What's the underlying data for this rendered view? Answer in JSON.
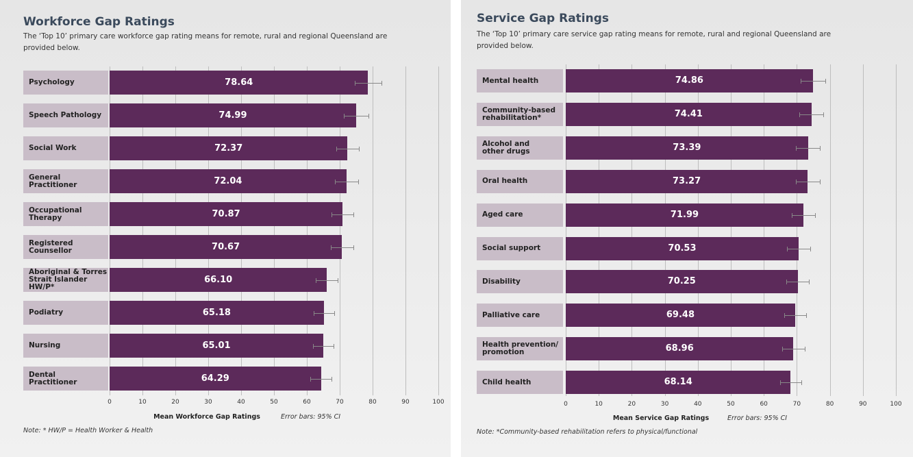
{
  "chart_data": [
    {
      "type": "bar",
      "orientation": "horizontal",
      "title": "Workforce Gap Ratings",
      "subtitle": "The ‘Top 10’ primary care workforce gap rating means for remote, rural and regional Queensland are provided below.",
      "categories": [
        "Psychology",
        "Speech Pathology",
        "Social Work",
        "General\nPractitioner",
        "Occupational\nTherapy",
        "Registered\nCounsellor",
        "Aboriginal & Torres\nStrait Islander HW/P*",
        "Podiatry",
        "Nursing",
        "Dental\nPractitioner"
      ],
      "values": [
        78.64,
        74.99,
        72.37,
        72.04,
        70.87,
        70.67,
        66.1,
        65.18,
        65.01,
        64.29
      ],
      "value_labels": [
        "78.64",
        "74.99",
        "72.37",
        "72.04",
        "70.87",
        "70.67",
        "66.10",
        "65.18",
        "65.01",
        "64.29"
      ],
      "errors": [
        4.0,
        3.7,
        3.5,
        3.5,
        3.4,
        3.4,
        3.3,
        3.2,
        3.2,
        3.2
      ],
      "color": "#5c2a5a",
      "xlim": [
        0,
        100
      ],
      "xticks": [
        0,
        10,
        20,
        30,
        40,
        50,
        60,
        70,
        80,
        90,
        100
      ],
      "grid": true,
      "xlabel": "Mean Workforce Gap Ratings",
      "error_note": "Error bars: 95% CI",
      "note": "Note: * HW/P = Health Worker & Health"
    },
    {
      "type": "bar",
      "orientation": "horizontal",
      "title": "Service Gap Ratings",
      "subtitle": "The ‘Top 10’ primary care service gap rating means for remote, rural and regional Queensland are provided below.",
      "categories": [
        "Mental health",
        "Community-based\nrehabilitation*",
        "Alcohol and\nother drugs",
        "Oral health",
        "Aged care",
        "Social support",
        "Disability",
        "Palliative care",
        "Health prevention/\npromotion",
        "Child health"
      ],
      "values": [
        74.86,
        74.41,
        73.39,
        73.27,
        71.99,
        70.53,
        70.25,
        69.48,
        68.96,
        68.14
      ],
      "value_labels": [
        "74.86",
        "74.41",
        "73.39",
        "73.27",
        "71.99",
        "70.53",
        "70.25",
        "69.48",
        "68.96",
        "68.14"
      ],
      "errors": [
        3.7,
        3.7,
        3.6,
        3.6,
        3.5,
        3.5,
        3.5,
        3.3,
        3.4,
        3.3
      ],
      "color": "#5c2a5a",
      "xlim": [
        0,
        100
      ],
      "xticks": [
        0,
        10,
        20,
        30,
        40,
        50,
        60,
        70,
        80,
        90,
        100
      ],
      "grid": true,
      "xlabel": "Mean Service Gap Ratings",
      "error_note": "Error bars: 95% CI",
      "note": "Note: *Community-based rehabilitation refers to physical/functional"
    }
  ]
}
